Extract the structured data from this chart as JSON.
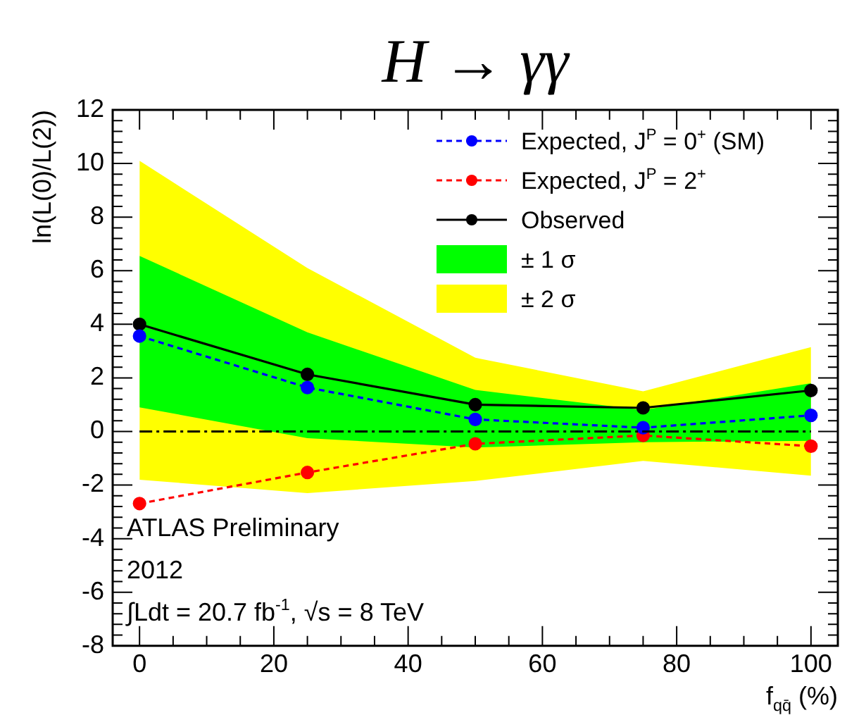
{
  "chart_data": {
    "type": "line",
    "title": "H → γγ",
    "xlabel": "f$_{qq̄}$ (%)",
    "ylabel": "ln(L(0)/L(2))",
    "x": [
      0,
      25,
      50,
      75,
      100
    ],
    "series": [
      {
        "name": "Expected, J$^{P}$ = 0$^{+}$ (SM)",
        "color": "#0000ff",
        "line_style": "dashed",
        "values": [
          3.56,
          1.64,
          0.45,
          0.14,
          0.6
        ]
      },
      {
        "name": "Expected, J$^{P}$ = 2$^{+}$",
        "color": "#ff0000",
        "line_style": "dashed",
        "values": [
          -2.69,
          -1.53,
          -0.46,
          -0.15,
          -0.55
        ]
      },
      {
        "name": "Observed",
        "color": "#000000",
        "line_style": "solid",
        "values": [
          4.0,
          2.13,
          1.0,
          0.88,
          1.53
        ]
      },
      {
        "name": "± 1 σ",
        "type": "line",
        "color": "#00ff00",
        "values": [
          null,
          null,
          null,
          null,
          null
        ],
        "lower": [
          0.9,
          -0.25,
          -0.6,
          -0.4,
          -0.35
        ],
        "upper": [
          6.55,
          3.7,
          1.55,
          0.8,
          1.8
        ]
      },
      {
        "name": "± 2 σ",
        "type": "line",
        "color": "#ffff00",
        "values": [
          null,
          null,
          null,
          null,
          null
        ],
        "lower": [
          -1.8,
          -2.3,
          -1.85,
          -1.1,
          -1.65
        ],
        "upper": [
          10.1,
          6.1,
          2.75,
          1.5,
          3.15
        ]
      }
    ],
    "xlim": [
      -4,
      104
    ],
    "xticks": [
      0,
      20,
      40,
      60,
      80,
      100
    ],
    "ylim": [
      -8,
      12
    ],
    "yticks": [
      -8,
      -6,
      -4,
      -2,
      0,
      2,
      4,
      6,
      8,
      10,
      12
    ],
    "ref_lines": [
      {
        "axis": "y",
        "value": 0,
        "color": "#000000",
        "line_style": "dashed"
      }
    ],
    "annotations": [
      "ATLAS Preliminary",
      "2012",
      "∫Ldt = 20.7 fb$^{-1}$, √s = 8 TeV"
    ],
    "marker": "circle",
    "grid": false,
    "legend": "top right"
  }
}
